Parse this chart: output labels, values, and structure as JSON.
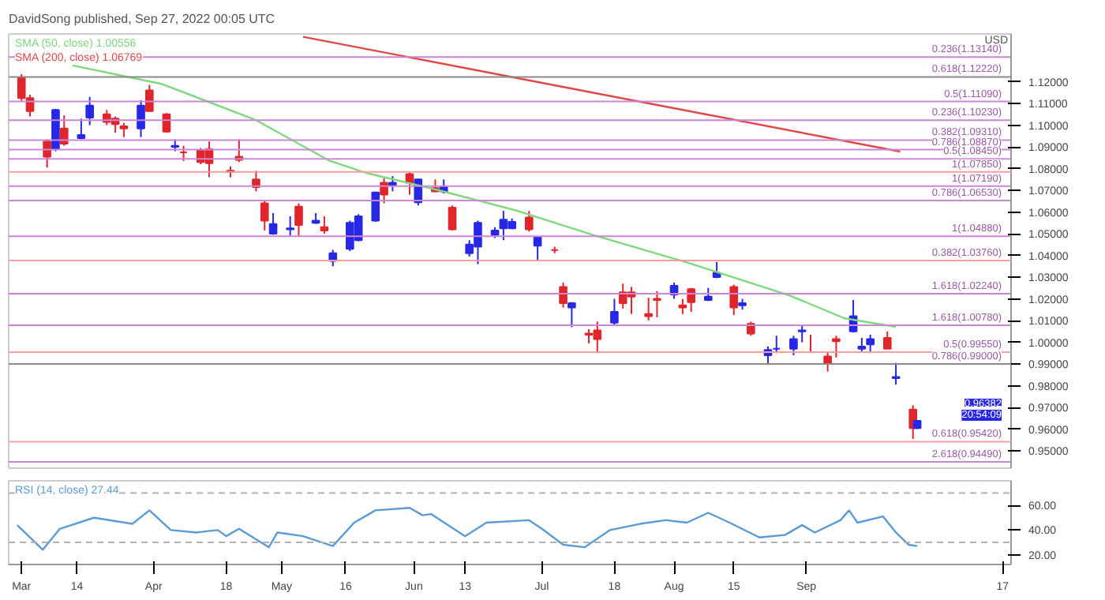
{
  "chart_data": [
    {
      "type": "candlestick",
      "title": "DavidSong published, Sep 27, 2022 00:05 UTC",
      "x": [
        "2022-03-01",
        "2022-03-03",
        "2022-03-07",
        "2022-03-09",
        "2022-03-11",
        "2022-03-15",
        "2022-03-17",
        "2022-03-21",
        "2022-03-23",
        "2022-03-25",
        "2022-03-29",
        "2022-03-31",
        "2022-04-04",
        "2022-04-06",
        "2022-04-08",
        "2022-04-12",
        "2022-04-14",
        "2022-04-19",
        "2022-04-21",
        "2022-04-25",
        "2022-04-27",
        "2022-04-29",
        "2022-05-03",
        "2022-05-05",
        "2022-05-09",
        "2022-05-11",
        "2022-05-13",
        "2022-05-17",
        "2022-05-19",
        "2022-05-23",
        "2022-05-25",
        "2022-05-27",
        "2022-05-31",
        "2022-06-02",
        "2022-06-06",
        "2022-06-08",
        "2022-06-10",
        "2022-06-14",
        "2022-06-16",
        "2022-06-20",
        "2022-06-22",
        "2022-06-24",
        "2022-06-28",
        "2022-06-30",
        "2022-07-04",
        "2022-07-06",
        "2022-07-08",
        "2022-07-12",
        "2022-07-14",
        "2022-07-18",
        "2022-07-20",
        "2022-07-22",
        "2022-07-26",
        "2022-07-28",
        "2022-08-01",
        "2022-08-03",
        "2022-08-05",
        "2022-08-09",
        "2022-08-11",
        "2022-08-15",
        "2022-08-17",
        "2022-08-19",
        "2022-08-23",
        "2022-08-25",
        "2022-08-29",
        "2022-08-31",
        "2022-09-02",
        "2022-09-06",
        "2022-09-08",
        "2022-09-12",
        "2022-09-14",
        "2022-09-16",
        "2022-09-20",
        "2022-09-22",
        "2022-09-26",
        "2022-09-27"
      ],
      "ohlc": [
        [
          1.122,
          1.1235,
          1.111,
          1.1125
        ],
        [
          1.1125,
          1.114,
          1.104,
          1.1065
        ],
        [
          1.0925,
          1.0935,
          1.0805,
          1.0855
        ],
        [
          1.089,
          1.1075,
          1.088,
          1.107
        ],
        [
          1.0985,
          1.1045,
          1.0905,
          1.0915
        ],
        [
          1.094,
          1.103,
          1.0935,
          1.0955
        ],
        [
          1.1035,
          1.113,
          1.1,
          1.109
        ],
        [
          1.105,
          1.107,
          1.1,
          1.1015
        ],
        [
          1.103,
          1.104,
          1.0965,
          1.1005
        ],
        [
          1.0995,
          1.101,
          1.0945,
          1.0985
        ],
        [
          1.0985,
          1.1115,
          1.0945,
          1.109
        ],
        [
          1.116,
          1.1185,
          1.1065,
          1.1065
        ],
        [
          1.105,
          1.1055,
          1.0965,
          1.097
        ],
        [
          1.09,
          1.0935,
          1.088,
          1.0905
        ],
        [
          1.0875,
          1.0905,
          1.0835,
          1.0875
        ],
        [
          1.0885,
          1.0895,
          1.082,
          1.083
        ],
        [
          1.089,
          1.0925,
          1.076,
          1.0825
        ],
        [
          1.079,
          1.081,
          1.076,
          1.0785
        ],
        [
          1.0855,
          1.0935,
          1.083,
          1.084
        ],
        [
          1.075,
          1.079,
          1.0695,
          1.0715
        ],
        [
          1.064,
          1.0655,
          1.0515,
          1.056
        ],
        [
          1.05,
          1.0595,
          1.0495,
          1.0545
        ],
        [
          1.052,
          1.058,
          1.049,
          1.0525
        ],
        [
          1.0625,
          1.064,
          1.049,
          1.054
        ],
        [
          1.055,
          1.0595,
          1.0545,
          1.056
        ],
        [
          1.053,
          1.058,
          1.05,
          1.0515
        ],
        [
          1.0375,
          1.0425,
          1.035,
          1.041
        ],
        [
          1.043,
          1.056,
          1.042,
          1.055
        ],
        [
          1.047,
          1.059,
          1.0465,
          1.058
        ],
        [
          1.056,
          1.069,
          1.0555,
          1.069
        ],
        [
          1.0735,
          1.0755,
          1.064,
          1.068
        ],
        [
          1.0725,
          1.0765,
          1.0695,
          1.0735
        ],
        [
          1.0775,
          1.0785,
          1.068,
          1.0735
        ],
        [
          1.0645,
          1.075,
          1.063,
          1.075
        ],
        [
          1.071,
          1.075,
          1.0695,
          1.0695
        ],
        [
          1.0695,
          1.075,
          1.0685,
          1.0715
        ],
        [
          1.062,
          1.063,
          1.0515,
          1.052
        ],
        [
          1.041,
          1.047,
          1.0395,
          1.045
        ],
        [
          1.044,
          1.056,
          1.036,
          1.055
        ],
        [
          1.0495,
          1.053,
          1.048,
          1.0515
        ],
        [
          1.0525,
          1.0605,
          1.047,
          1.0565
        ],
        [
          1.0525,
          1.057,
          1.0525,
          1.0555
        ],
        [
          1.0575,
          1.0605,
          1.051,
          1.052
        ],
        [
          1.0445,
          1.0485,
          1.038,
          1.0485
        ],
        [
          1.0425,
          1.044,
          1.041,
          1.0425
        ],
        [
          1.0255,
          1.0275,
          1.016,
          1.018
        ],
        [
          1.016,
          1.0185,
          1.007,
          1.018
        ],
        [
          1.004,
          1.006,
          0.9995,
          1.0035
        ],
        [
          1.0055,
          1.0095,
          0.995,
          1.0015
        ],
        [
          1.009,
          1.02,
          1.008,
          1.014
        ],
        [
          1.023,
          1.027,
          1.0155,
          1.018
        ],
        [
          1.023,
          1.0255,
          1.013,
          1.021
        ],
        [
          1.013,
          1.0205,
          1.01,
          1.012
        ],
        [
          1.02,
          1.0235,
          1.0115,
          1.0195
        ],
        [
          1.022,
          1.0275,
          1.02,
          1.026
        ],
        [
          1.017,
          1.02,
          1.013,
          1.016
        ],
        [
          1.0245,
          1.025,
          1.014,
          1.0185
        ],
        [
          1.0195,
          1.025,
          1.019,
          1.021
        ],
        [
          1.03,
          1.037,
          1.0295,
          1.032
        ],
        [
          1.0255,
          1.0265,
          1.0125,
          1.016
        ],
        [
          1.017,
          1.02,
          1.015,
          1.018
        ],
        [
          1.0085,
          1.0095,
          1.003,
          1.004
        ],
        [
          0.994,
          0.998,
          0.99,
          0.9965
        ],
        [
          0.997,
          1.003,
          0.995,
          0.997
        ],
        [
          0.997,
          1.003,
          0.994,
          1.0015
        ],
        [
          1.005,
          1.008,
          1.0,
          1.0055
        ],
        [
          0.9955,
          1.0035,
          0.995,
          0.9955
        ],
        [
          0.9935,
          0.9955,
          0.9865,
          0.99
        ],
        [
          1.0015,
          1.003,
          0.993,
          1.0005
        ],
        [
          1.005,
          1.0195,
          1.0045,
          1.012
        ],
        [
          0.997,
          1.002,
          0.9955,
          0.998
        ],
        [
          0.999,
          1.0035,
          0.995,
          1.0015
        ],
        [
          1.002,
          1.005,
          0.997,
          0.997
        ],
        [
          0.9835,
          0.9905,
          0.9805,
          0.984
        ],
        [
          0.969,
          0.971,
          0.9555,
          0.9605
        ],
        [
          0.9605,
          0.964,
          0.96,
          0.9638
        ]
      ],
      "colors": [
        "#e0252b",
        "#e0252b",
        "#e0252b",
        "#2727e6",
        "#e0252b",
        "#2727e6",
        "#2727e6",
        "#e0252b",
        "#e0252b",
        "#e0252b",
        "#2727e6",
        "#e0252b",
        "#e0252b",
        "#2727e6",
        "#e0252b",
        "#e0252b",
        "#e0252b",
        "#e0252b",
        "#e0252b",
        "#e0252b",
        "#e0252b",
        "#2727e6",
        "#2727e6",
        "#e0252b",
        "#2727e6",
        "#e0252b",
        "#2727e6",
        "#2727e6",
        "#2727e6",
        "#2727e6",
        "#e0252b",
        "#2727e6",
        "#e0252b",
        "#2727e6",
        "#e0252b",
        "#2727e6",
        "#e0252b",
        "#2727e6",
        "#2727e6",
        "#2727e6",
        "#2727e6",
        "#2727e6",
        "#e0252b",
        "#2727e6",
        "#e0252b",
        "#e0252b",
        "#2727e6",
        "#e0252b",
        "#e0252b",
        "#2727e6",
        "#e0252b",
        "#e0252b",
        "#e0252b",
        "#e0252b",
        "#2727e6",
        "#e0252b",
        "#e0252b",
        "#2727e6",
        "#2727e6",
        "#e0252b",
        "#2727e6",
        "#e0252b",
        "#2727e6",
        "#2727e6",
        "#2727e6",
        "#2727e6",
        "#e0252b",
        "#e0252b",
        "#e0252b",
        "#2727e6",
        "#2727e6",
        "#2727e6",
        "#e0252b",
        "#2727e6",
        "#e0252b",
        "#2727e6"
      ],
      "series": [
        {
          "type": "line",
          "name": "SMA (50, close) 1.00556",
          "color": "#7ed87e",
          "x": [
            "2022-03-13",
            "2022-04-03",
            "2022-04-25",
            "2022-05-12",
            "2022-05-21",
            "2022-06-07",
            "2022-06-25",
            "2022-07-13",
            "2022-08-04",
            "2022-08-28",
            "2022-09-10",
            "2022-09-22"
          ],
          "values": [
            1.1275,
            1.1189,
            1.1023,
            1.0838,
            1.0779,
            1.0699,
            1.0607,
            1.0494,
            1.0368,
            1.0216,
            1.011,
            1.0071
          ]
        },
        {
          "type": "line",
          "name": "SMA (200, close) 1.06769",
          "color": "#e04848",
          "x": [
            "2022-05-06",
            "2022-07-15",
            "2022-09-23"
          ],
          "values": [
            1.1407,
            1.1142,
            1.0878
          ]
        }
      ],
      "xlim": [
        "2022-02-26",
        "2022-10-19"
      ],
      "ylim": [
        0.942,
        1.142
      ],
      "yticks": [
        {
          "value": 0.95,
          "label": "0.95000"
        },
        {
          "value": 0.96,
          "label": "0.96000"
        },
        {
          "value": 0.97,
          "label": "0.97000"
        },
        {
          "value": 0.98,
          "label": "0.98000"
        },
        {
          "value": 0.99,
          "label": "0.99000"
        },
        {
          "value": 1.0,
          "label": "1.00000"
        },
        {
          "value": 1.01,
          "label": "1.01000"
        },
        {
          "value": 1.02,
          "label": "1.02000"
        },
        {
          "value": 1.03,
          "label": "1.03000"
        },
        {
          "value": 1.04,
          "label": "1.04000"
        },
        {
          "value": 1.05,
          "label": "1.05000"
        },
        {
          "value": 1.06,
          "label": "1.06000"
        },
        {
          "value": 1.07,
          "label": "1.07000"
        },
        {
          "value": 1.08,
          "label": "1.08000"
        },
        {
          "value": 1.09,
          "label": "1.09000"
        },
        {
          "value": 1.1,
          "label": "1.10000"
        },
        {
          "value": 1.11,
          "label": "1.11000"
        },
        {
          "value": 1.12,
          "label": "1.12000"
        }
      ],
      "tick_labels": "y",
      "grid": false,
      "ref_lines": [
        {
          "axis": "y",
          "value": 1.1314,
          "label": "0.236(1.13140)",
          "color": "#c987d4"
        },
        {
          "axis": "y",
          "value": 1.1222,
          "label": "0.618(1.12220)",
          "color": "#8a8a8a"
        },
        {
          "axis": "y",
          "value": 1.1109,
          "label": "0.5(1.11090)",
          "color": "#c987d4"
        },
        {
          "axis": "y",
          "value": 1.1023,
          "label": "0.236(1.10230)",
          "color": "#c987d4"
        },
        {
          "axis": "y",
          "value": 1.0931,
          "label": "0.382(1.09310)",
          "color": "#c987d4"
        },
        {
          "axis": "y",
          "value": 1.0887,
          "label": "0.786(1.08870)",
          "color": "#c987d4"
        },
        {
          "axis": "y",
          "value": 1.0845,
          "label": "0.5(1.08450)",
          "color": "#c987d4"
        },
        {
          "axis": "y",
          "value": 1.0785,
          "label": "1(1.07850)",
          "color": "#f4a0a0"
        },
        {
          "axis": "y",
          "value": 1.0719,
          "label": "1(1.07190)",
          "color": "#c987d4"
        },
        {
          "axis": "y",
          "value": 1.0653,
          "label": "0.786(1.06530)",
          "color": "#c987d4"
        },
        {
          "axis": "y",
          "value": 1.0488,
          "label": "1(1.04880)",
          "color": "#c987d4"
        },
        {
          "axis": "y",
          "value": 1.0376,
          "label": "0.382(1.03760)",
          "color": "#f4a0a0"
        },
        {
          "axis": "y",
          "value": 1.0224,
          "label": "1.618(1.02240)",
          "color": "#c987d4"
        },
        {
          "axis": "y",
          "value": 1.0078,
          "label": "1.618(1.00780)",
          "color": "#c987d4"
        },
        {
          "axis": "y",
          "value": 0.9955,
          "label": "0.5(0.99550)",
          "color": "#f4a0a0"
        },
        {
          "axis": "y",
          "value": 0.99,
          "label": "0.786(0.99000)",
          "color": "#8a8a8a"
        },
        {
          "axis": "y",
          "value": 0.9542,
          "label": "0.618(0.95420)",
          "color": "#f4a0a0"
        },
        {
          "axis": "y",
          "value": 0.9449,
          "label": "2.618(0.94490)",
          "color": "#c987d4"
        }
      ],
      "annotations": [
        "USD",
        "0.96382",
        "20:54:09"
      ]
    },
    {
      "type": "line",
      "series": [
        {
          "name": "RSI (14, close) 27.44",
          "color": "#5b9bd5",
          "x": [
            "2022-02-28",
            "2022-03-06",
            "2022-03-10",
            "2022-03-18",
            "2022-03-27",
            "2022-03-31",
            "2022-04-05",
            "2022-04-11",
            "2022-04-16",
            "2022-04-18",
            "2022-04-21",
            "2022-04-28",
            "2022-04-30",
            "2022-05-06",
            "2022-05-13",
            "2022-05-18",
            "2022-05-23",
            "2022-05-31",
            "2022-06-03",
            "2022-06-05",
            "2022-06-13",
            "2022-06-18",
            "2022-06-28",
            "2022-07-01",
            "2022-07-06",
            "2022-07-11",
            "2022-07-17",
            "2022-07-24",
            "2022-07-30",
            "2022-08-04",
            "2022-08-09",
            "2022-08-14",
            "2022-08-21",
            "2022-08-27",
            "2022-08-31",
            "2022-09-03",
            "2022-09-09",
            "2022-09-11",
            "2022-09-13",
            "2022-09-19",
            "2022-09-22",
            "2022-09-25",
            "2022-09-27"
          ],
          "values": [
            44,
            24,
            41,
            50,
            45,
            56,
            40,
            38,
            40,
            35,
            41,
            26,
            38,
            35,
            27,
            46,
            56,
            58,
            52,
            53,
            35,
            46,
            48,
            41,
            28,
            26,
            40,
            45,
            48,
            46,
            54,
            46,
            34,
            36,
            44,
            38,
            48,
            56,
            46,
            51,
            38,
            28,
            27
          ]
        }
      ],
      "xlim": [
        "2022-02-26",
        "2022-10-19"
      ],
      "ylim": [
        12,
        80
      ],
      "yticks": [
        {
          "value": 20,
          "label": "20.00"
        },
        {
          "value": 40,
          "label": "40.00"
        },
        {
          "value": 60,
          "label": "60.00"
        }
      ],
      "xticks": [
        {
          "value": "2022-03-01",
          "label": "Mar"
        },
        {
          "value": "2022-03-14",
          "label": "14"
        },
        {
          "value": "2022-04-01",
          "label": "Apr"
        },
        {
          "value": "2022-04-18",
          "label": "18"
        },
        {
          "value": "2022-05-01",
          "label": "May"
        },
        {
          "value": "2022-05-16",
          "label": "16"
        },
        {
          "value": "2022-06-01",
          "label": "Jun"
        },
        {
          "value": "2022-06-13",
          "label": "13"
        },
        {
          "value": "2022-07-01",
          "label": "Jul"
        },
        {
          "value": "2022-07-18",
          "label": "18"
        },
        {
          "value": "2022-08-01",
          "label": "Aug"
        },
        {
          "value": "2022-08-15",
          "label": "15"
        },
        {
          "value": "2022-09-01",
          "label": "Sep"
        },
        {
          "value": "2022-10-17",
          "label": "17"
        }
      ],
      "grid": false,
      "ref_lines": [
        {
          "axis": "y",
          "value": 70,
          "color": "#b0b0b0",
          "line_style": "dashed"
        },
        {
          "axis": "y",
          "value": 30,
          "color": "#b0b0b0",
          "line_style": "dashed"
        }
      ]
    }
  ]
}
